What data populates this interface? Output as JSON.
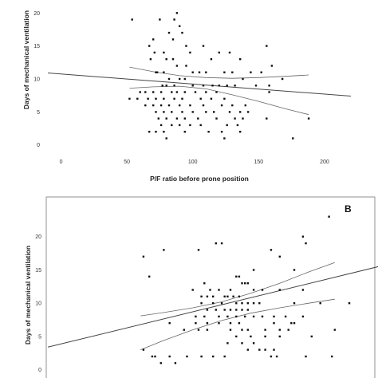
{
  "chart_data": [
    {
      "type": "scatter",
      "panel_label": "",
      "xlabel": "P/F ratio before prone position",
      "ylabel": "Days of mechanical ventilation",
      "xlim": [
        -10,
        220
      ],
      "ylim": [
        -1,
        21
      ],
      "xticks": [
        0,
        50,
        100,
        150,
        200
      ],
      "yticks": [
        0,
        5,
        10,
        15,
        20
      ],
      "grid": false,
      "points": [
        [
          54,
          19
        ],
        [
          67,
          15
        ],
        [
          70,
          16
        ],
        [
          71,
          14
        ],
        [
          72,
          11
        ],
        [
          73,
          11
        ],
        [
          68,
          13
        ],
        [
          75,
          19
        ],
        [
          72,
          2
        ],
        [
          67,
          2
        ],
        [
          88,
          20
        ],
        [
          86,
          19
        ],
        [
          90,
          18
        ],
        [
          85,
          16
        ],
        [
          82,
          17
        ],
        [
          92,
          17
        ],
        [
          95,
          15
        ],
        [
          78,
          14
        ],
        [
          80,
          13
        ],
        [
          98,
          14
        ],
        [
          100,
          11
        ],
        [
          105,
          11
        ],
        [
          110,
          11
        ],
        [
          95,
          12
        ],
        [
          88,
          12
        ],
        [
          85,
          13
        ],
        [
          78,
          11
        ],
        [
          82,
          10
        ],
        [
          90,
          10
        ],
        [
          94,
          10
        ],
        [
          77,
          9
        ],
        [
          80,
          9
        ],
        [
          86,
          9
        ],
        [
          100,
          9
        ],
        [
          108,
          9
        ],
        [
          115,
          9
        ],
        [
          120,
          9
        ],
        [
          126,
          9
        ],
        [
          132,
          9
        ],
        [
          138,
          10
        ],
        [
          60,
          8
        ],
        [
          64,
          8
        ],
        [
          70,
          8
        ],
        [
          76,
          8
        ],
        [
          84,
          8
        ],
        [
          88,
          8
        ],
        [
          94,
          8
        ],
        [
          102,
          8
        ],
        [
          110,
          8
        ],
        [
          118,
          8
        ],
        [
          52,
          7
        ],
        [
          58,
          7
        ],
        [
          66,
          7
        ],
        [
          72,
          7
        ],
        [
          78,
          7
        ],
        [
          86,
          7
        ],
        [
          92,
          7
        ],
        [
          106,
          7
        ],
        [
          114,
          7
        ],
        [
          124,
          7
        ],
        [
          64,
          6
        ],
        [
          70,
          6
        ],
        [
          76,
          6
        ],
        [
          82,
          6
        ],
        [
          90,
          6
        ],
        [
          98,
          6
        ],
        [
          108,
          6
        ],
        [
          122,
          6
        ],
        [
          130,
          6
        ],
        [
          140,
          6
        ],
        [
          72,
          5
        ],
        [
          78,
          5
        ],
        [
          84,
          5
        ],
        [
          92,
          5
        ],
        [
          100,
          5
        ],
        [
          110,
          5
        ],
        [
          116,
          5
        ],
        [
          128,
          5
        ],
        [
          136,
          5
        ],
        [
          142,
          5
        ],
        [
          74,
          4
        ],
        [
          80,
          4
        ],
        [
          88,
          4
        ],
        [
          94,
          4
        ],
        [
          104,
          4
        ],
        [
          118,
          4
        ],
        [
          132,
          4
        ],
        [
          138,
          4
        ],
        [
          156,
          4
        ],
        [
          188,
          4
        ],
        [
          76,
          3
        ],
        [
          84,
          3
        ],
        [
          90,
          3
        ],
        [
          98,
          3
        ],
        [
          106,
          3
        ],
        [
          126,
          3
        ],
        [
          134,
          3
        ],
        [
          78,
          2
        ],
        [
          94,
          2
        ],
        [
          112,
          2
        ],
        [
          122,
          2
        ],
        [
          136,
          2
        ],
        [
          124,
          1
        ],
        [
          80,
          1
        ],
        [
          176,
          1
        ],
        [
          120,
          14
        ],
        [
          128,
          14
        ],
        [
          136,
          13
        ],
        [
          152,
          11
        ],
        [
          160,
          12
        ],
        [
          156,
          15
        ],
        [
          144,
          11
        ],
        [
          148,
          9
        ],
        [
          158,
          9
        ],
        [
          168,
          10
        ],
        [
          158,
          8
        ],
        [
          130,
          11
        ],
        [
          124,
          11
        ],
        [
          108,
          15
        ],
        [
          114,
          13
        ]
      ],
      "fit_line": {
        "x": [
          -10,
          220
        ],
        "y": [
          10.9,
          7.4
        ]
      },
      "ci_upper": {
        "x": [
          52,
          70,
          90,
          110,
          130,
          150,
          170,
          188
        ],
        "y": [
          11.8,
          11.1,
          10.5,
          10.2,
          10.1,
          10.2,
          10.4,
          10.6
        ]
      },
      "ci_lower": {
        "x": [
          52,
          70,
          90,
          110,
          130,
          150,
          170,
          188
        ],
        "y": [
          8.6,
          8.8,
          8.9,
          8.5,
          7.6,
          6.6,
          5.5,
          4.6
        ]
      }
    },
    {
      "type": "scatter",
      "panel_label": "B",
      "xlabel": "",
      "ylabel": "Days of mechanical ventilation",
      "xlim": [
        -10,
        220
      ],
      "ylim": [
        -1,
        25
      ],
      "xticks": [],
      "yticks": [
        0,
        5,
        10,
        15,
        20
      ],
      "grid": false,
      "points": [
        [
          184,
          23
        ],
        [
          166,
          20
        ],
        [
          168,
          19
        ],
        [
          144,
          18
        ],
        [
          150,
          17
        ],
        [
          110,
          19
        ],
        [
          106,
          19
        ],
        [
          94,
          18
        ],
        [
          70,
          18
        ],
        [
          56,
          17
        ],
        [
          60,
          14
        ],
        [
          132,
          15
        ],
        [
          160,
          15
        ],
        [
          120,
          14
        ],
        [
          122,
          14
        ],
        [
          124,
          13
        ],
        [
          126,
          13
        ],
        [
          128,
          13
        ],
        [
          98,
          13
        ],
        [
          90,
          12
        ],
        [
          102,
          12
        ],
        [
          108,
          12
        ],
        [
          116,
          12
        ],
        [
          132,
          12
        ],
        [
          138,
          12
        ],
        [
          150,
          12
        ],
        [
          166,
          12
        ],
        [
          114,
          11
        ],
        [
          118,
          11
        ],
        [
          122,
          11
        ],
        [
          96,
          11
        ],
        [
          100,
          11
        ],
        [
          104,
          11
        ],
        [
          112,
          11
        ],
        [
          120,
          10
        ],
        [
          124,
          10
        ],
        [
          128,
          10
        ],
        [
          132,
          10
        ],
        [
          136,
          10
        ],
        [
          160,
          10
        ],
        [
          178,
          10
        ],
        [
          198,
          10
        ],
        [
          96,
          10
        ],
        [
          104,
          10
        ],
        [
          110,
          10
        ],
        [
          112,
          9
        ],
        [
          116,
          9
        ],
        [
          120,
          9
        ],
        [
          124,
          9
        ],
        [
          128,
          9
        ],
        [
          100,
          9
        ],
        [
          106,
          9
        ],
        [
          92,
          8
        ],
        [
          98,
          8
        ],
        [
          108,
          8
        ],
        [
          114,
          8
        ],
        [
          120,
          8
        ],
        [
          126,
          8
        ],
        [
          132,
          8
        ],
        [
          138,
          8
        ],
        [
          146,
          8
        ],
        [
          154,
          8
        ],
        [
          166,
          8
        ],
        [
          74,
          7
        ],
        [
          92,
          7
        ],
        [
          100,
          7
        ],
        [
          108,
          7
        ],
        [
          116,
          7
        ],
        [
          122,
          7
        ],
        [
          146,
          7
        ],
        [
          158,
          7
        ],
        [
          160,
          7
        ],
        [
          188,
          6
        ],
        [
          84,
          6
        ],
        [
          94,
          6
        ],
        [
          100,
          6
        ],
        [
          116,
          6
        ],
        [
          124,
          6
        ],
        [
          128,
          6
        ],
        [
          140,
          6
        ],
        [
          150,
          6
        ],
        [
          156,
          6
        ],
        [
          120,
          5
        ],
        [
          130,
          5
        ],
        [
          140,
          5
        ],
        [
          150,
          5
        ],
        [
          172,
          5
        ],
        [
          114,
          4
        ],
        [
          124,
          4
        ],
        [
          132,
          4
        ],
        [
          136,
          3
        ],
        [
          140,
          3
        ],
        [
          146,
          3
        ],
        [
          128,
          3
        ],
        [
          56,
          3
        ],
        [
          64,
          2
        ],
        [
          68,
          1
        ],
        [
          78,
          1
        ],
        [
          86,
          2
        ],
        [
          104,
          2
        ],
        [
          96,
          2
        ],
        [
          112,
          2
        ],
        [
          144,
          2
        ],
        [
          148,
          2
        ],
        [
          168,
          2
        ],
        [
          186,
          2
        ],
        [
          62,
          2
        ],
        [
          74,
          2
        ]
      ],
      "fit_line": {
        "x": [
          -10,
          220
        ],
        "y": [
          3.4,
          15.6
        ]
      },
      "ci_upper": {
        "x": [
          54,
          70,
          90,
          110,
          130,
          150,
          170,
          188
        ],
        "y": [
          8.1,
          8.6,
          9.3,
          10.2,
          11.5,
          13.0,
          14.7,
          16.1
        ]
      },
      "ci_lower": {
        "x": [
          54,
          70,
          90,
          110,
          130,
          150,
          170,
          188
        ],
        "y": [
          3.0,
          4.4,
          6.0,
          7.4,
          8.5,
          9.3,
          10.0,
          10.6
        ]
      }
    }
  ]
}
